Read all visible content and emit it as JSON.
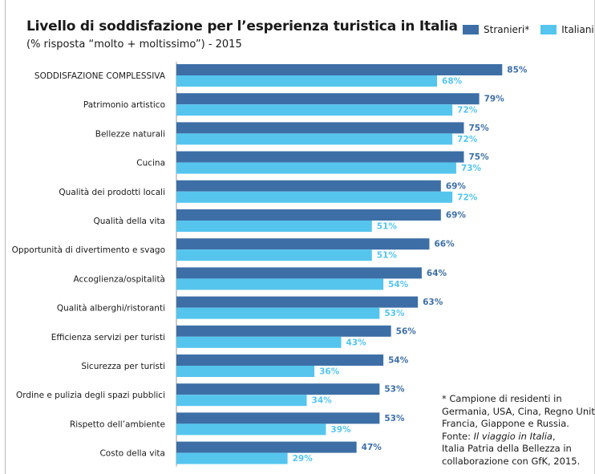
{
  "chart_data": {
    "type": "bar",
    "orientation": "horizontal",
    "title": "Livello di soddisfazione per l’esperienza turistica in Italia",
    "subtitle": "(% risposta “molto + moltissimo”) - 2015",
    "xlim": [
      0,
      100
    ],
    "grid": false,
    "legend_position": "top-right",
    "categories": [
      "SODDISFAZIONE COMPLESSIVA",
      "Patrimonio artistico",
      "Bellezze naturali",
      "Cucina",
      "Qualità dei prodotti locali",
      "Qualità della vita",
      "Opportunità di divertimento e svago",
      "Accoglienza/ospitalità",
      "Qualità alberghi/ristoranti",
      "Efficienza servizi per turisti",
      "Sicurezza per turisti",
      "Ordine e pulizia degli spazi pubblici",
      "Rispetto dell’ambiente",
      "Costo della vita"
    ],
    "series": [
      {
        "name": "Stranieri*",
        "color": "#3d6fa6",
        "values": [
          85,
          79,
          75,
          75,
          69,
          69,
          66,
          64,
          63,
          56,
          54,
          53,
          53,
          47
        ]
      },
      {
        "name": "Italiani",
        "color": "#55c5ee",
        "values": [
          68,
          72,
          72,
          73,
          72,
          51,
          51,
          54,
          53,
          43,
          36,
          34,
          39,
          29
        ]
      }
    ],
    "value_suffix": "%"
  },
  "footnote": {
    "line1": "* Campione di residenti in",
    "line2": "Germania, USA, Cina, Regno Unito,",
    "line3": "Francia, Giappone e Russia.",
    "source_prefix": "Fonte: ",
    "source_title": "Il viaggio in Italia",
    "source_suffix": ",",
    "line5": "Italia Patria della Bellezza in",
    "line6": "collaborazione con GfK, 2015."
  }
}
